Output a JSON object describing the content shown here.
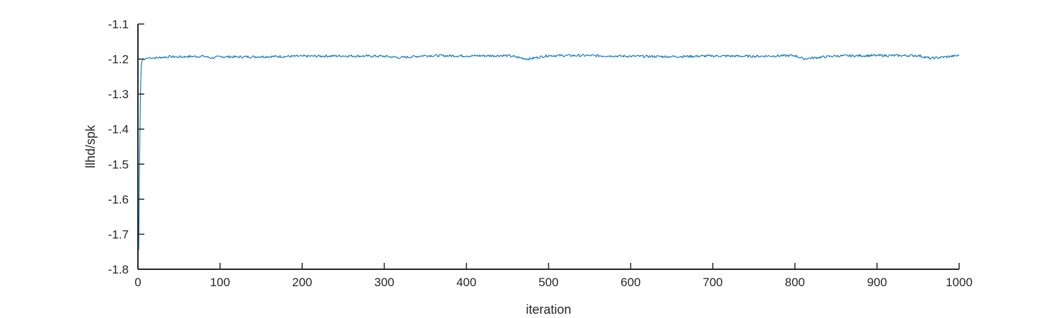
{
  "chart_data": {
    "type": "line",
    "title": "",
    "xlabel": "iteration",
    "ylabel": "llhd/spk",
    "xlim": [
      0,
      1000
    ],
    "ylim": [
      -1.8,
      -1.1
    ],
    "xticks": [
      0,
      100,
      200,
      300,
      400,
      500,
      600,
      700,
      800,
      900,
      1000
    ],
    "yticks": [
      -1.8,
      -1.7,
      -1.6,
      -1.5,
      -1.4,
      -1.3,
      -1.2,
      -1.1
    ],
    "xtick_labels": [
      "0",
      "100",
      "200",
      "300",
      "400",
      "500",
      "600",
      "700",
      "800",
      "900",
      "1000"
    ],
    "ytick_labels": [
      "-1.8",
      "-1.7",
      "-1.6",
      "-1.5",
      "-1.4",
      "-1.3",
      "-1.2",
      "-1.1"
    ],
    "grid": false,
    "line_color": "#0072BD",
    "series": [
      {
        "x": [
          1,
          2,
          3,
          4,
          5,
          6,
          8,
          10,
          15,
          20,
          30,
          40,
          50,
          60,
          80,
          90,
          100,
          120,
          150,
          200,
          250,
          300,
          320,
          350,
          400,
          450,
          475,
          500,
          550,
          600,
          650,
          700,
          750,
          800,
          810,
          850,
          900,
          950,
          965,
          1000
        ],
        "y": [
          -1.745,
          -1.5,
          -1.3,
          -1.22,
          -1.205,
          -1.2,
          -1.202,
          -1.198,
          -1.196,
          -1.197,
          -1.195,
          -1.193,
          -1.194,
          -1.193,
          -1.192,
          -1.197,
          -1.193,
          -1.194,
          -1.193,
          -1.192,
          -1.191,
          -1.192,
          -1.196,
          -1.19,
          -1.191,
          -1.19,
          -1.2,
          -1.19,
          -1.19,
          -1.192,
          -1.193,
          -1.191,
          -1.192,
          -1.19,
          -1.199,
          -1.191,
          -1.19,
          -1.19,
          -1.198,
          -1.19
        ]
      }
    ]
  }
}
